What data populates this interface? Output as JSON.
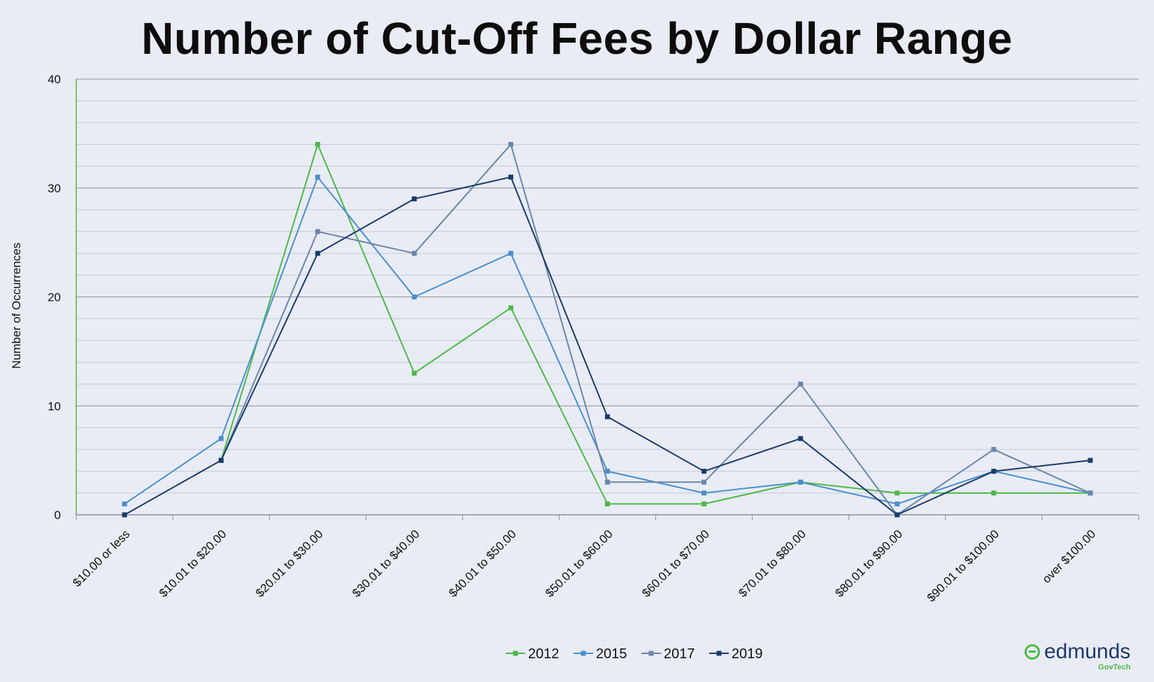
{
  "chart_data": {
    "type": "line",
    "title": "Number of Cut-Off Fees by Dollar Range",
    "ylabel": "Number of Occurrences",
    "xlabel": "",
    "ylim": [
      0,
      40
    ],
    "yticks": [
      0,
      10,
      20,
      30,
      40
    ],
    "grid": true,
    "legend_position": "bottom",
    "categories": [
      "$10.00 or less",
      "$10.01 to $20.00",
      "$20.01 to $30.00",
      "$30.01 to $40.00",
      "$40.01 to $50.00",
      "$50.01 to $60.00",
      "$60.01 to $70.00",
      "$70.01 to $80.00",
      "$80.01 to $90.00",
      "$90.01 to $100.00",
      "over $100.00"
    ],
    "series": [
      {
        "name": "2012",
        "color": "#4db848",
        "values": [
          null,
          5,
          34,
          13,
          19,
          1,
          1,
          3,
          2,
          2,
          2
        ]
      },
      {
        "name": "2015",
        "color": "#4a8fce",
        "values": [
          1,
          7,
          31,
          20,
          24,
          4,
          2,
          3,
          1,
          4,
          2
        ]
      },
      {
        "name": "2017",
        "color": "#6a86a8",
        "values": [
          null,
          5,
          26,
          24,
          34,
          3,
          3,
          12,
          0,
          6,
          2
        ]
      },
      {
        "name": "2019",
        "color": "#1a3b6b",
        "values": [
          0,
          5,
          24,
          29,
          31,
          9,
          4,
          7,
          0,
          4,
          5
        ]
      }
    ]
  },
  "logo": {
    "main": "edmunds",
    "sub": "GovTech"
  }
}
